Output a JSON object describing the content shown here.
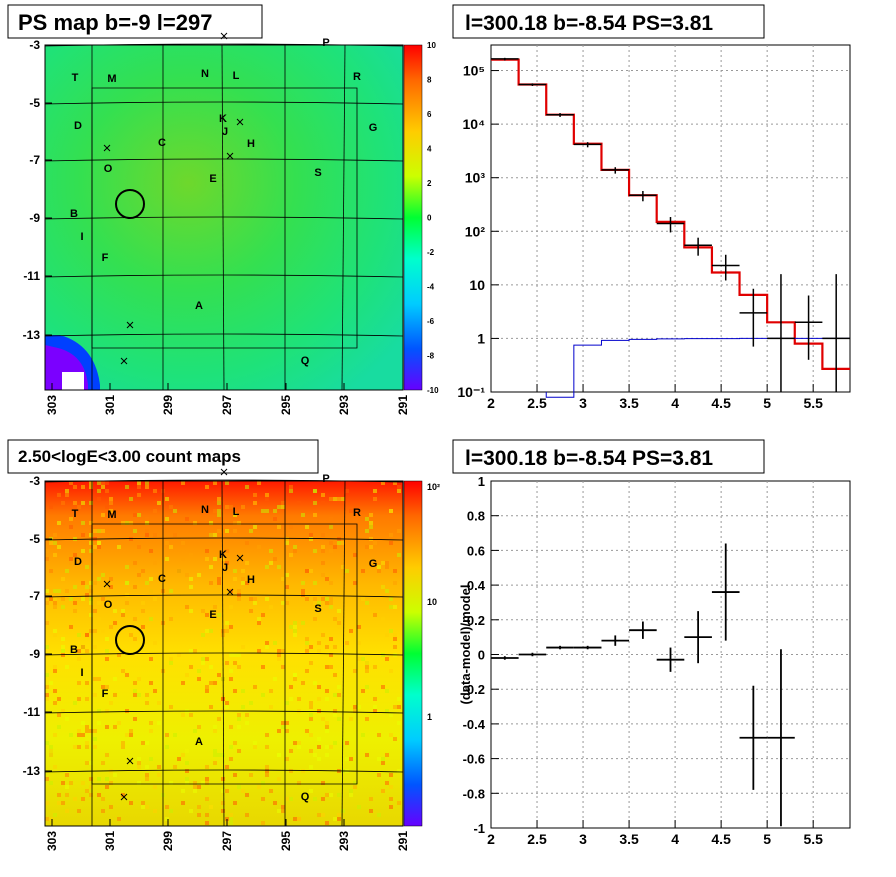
{
  "ps_map": {
    "title": "PS map b=-9 l=297",
    "y_ticks": [
      "-3",
      "-5",
      "-7",
      "-9",
      "-11",
      "-13"
    ],
    "x_ticks": [
      "303",
      "301",
      "299",
      "297",
      "295",
      "293",
      "291"
    ],
    "colorbar_ticks": [
      "10",
      "8",
      "6",
      "4",
      "2",
      "0",
      "-2",
      "-4",
      "-6",
      "-8",
      "-10"
    ],
    "labels": [
      "T",
      "M",
      "N",
      "L",
      "P",
      "R",
      "D",
      "K",
      "J",
      "H",
      "G",
      "C",
      "O",
      "E",
      "S",
      "B",
      "I",
      "F",
      "A",
      "Q"
    ]
  },
  "count_map": {
    "title": "2.50<logE<3.00 count maps",
    "y_ticks": [
      "-3",
      "-5",
      "-7",
      "-9",
      "-11",
      "-13"
    ],
    "x_ticks": [
      "303",
      "301",
      "299",
      "297",
      "295",
      "293",
      "291"
    ],
    "colorbar_ticks": [
      "10²",
      "10",
      "1"
    ],
    "labels": [
      "T",
      "M",
      "N",
      "L",
      "P",
      "R",
      "D",
      "K",
      "J",
      "H",
      "G",
      "C",
      "O",
      "E",
      "S",
      "B",
      "I",
      "F",
      "A",
      "Q"
    ]
  },
  "spectrum": {
    "title": "l=300.18 b=-8.54 PS=3.81",
    "y_ticks": [
      "10⁵",
      "10⁴",
      "10³",
      "10²",
      "10",
      "1",
      "10⁻¹"
    ],
    "x_ticks": [
      "2",
      "2.5",
      "3",
      "3.5",
      "4",
      "4.5",
      "5",
      "5.5"
    ]
  },
  "residual": {
    "title": "l=300.18 b=-8.54 PS=3.81",
    "ylabel": "(data-model)/model",
    "y_ticks": [
      "1",
      "0.8",
      "0.6",
      "0.4",
      "0.2",
      "0",
      "-0.2",
      "-0.4",
      "-0.6",
      "-0.8",
      "-1"
    ],
    "x_ticks": [
      "2",
      "2.5",
      "3",
      "3.5",
      "4",
      "4.5",
      "5",
      "5.5"
    ]
  },
  "chart_data": [
    {
      "type": "heatmap",
      "title": "PS map b=-9 l=297",
      "xlim": [
        303,
        291
      ],
      "ylim": [
        -14.5,
        -3
      ],
      "zlim": [
        -10,
        10
      ],
      "circle": {
        "l": 300.18,
        "b": -8.54
      }
    },
    {
      "type": "heatmap",
      "title": "2.50<logE<3.00 count maps",
      "xlim": [
        303,
        291
      ],
      "ylim": [
        -14.5,
        -3
      ],
      "z_scale": "log"
    },
    {
      "type": "line",
      "title": "l=300.18 b=-8.54 PS=3.81",
      "y_scale": "log",
      "xlim": [
        2,
        5.9
      ],
      "ylim": [
        0.1,
        300000
      ],
      "bin_edges": [
        2.0,
        2.3,
        2.6,
        2.9,
        3.2,
        3.5,
        3.8,
        4.1,
        4.4,
        4.7,
        5.0,
        5.3,
        5.6,
        5.9
      ],
      "series": [
        {
          "values": [
            160000,
            55000,
            15000,
            4300,
            1400,
            470,
            150,
            50,
            17,
            6.5,
            2.0,
            0.8,
            0.27
          ],
          "color": "#e00000"
        },
        {
          "values": [
            0,
            0,
            0.08,
            0.75,
            0.92,
            0.96,
            0.98,
            0.99,
            0.99,
            1.0,
            1.0,
            1.0,
            1.0
          ],
          "color": "#0000cc"
        },
        {
          "points": [
            [
              2.15,
              165000
            ],
            [
              2.45,
              55000
            ],
            [
              2.75,
              15000
            ],
            [
              3.05,
              4200
            ],
            [
              3.35,
              1400
            ],
            [
              3.65,
              470
            ],
            [
              3.95,
              140
            ],
            [
              4.25,
              55
            ],
            [
              4.55,
              23
            ],
            [
              4.85,
              3
            ],
            [
              5.15,
              1
            ],
            [
              5.45,
              2
            ],
            [
              5.75,
              1
            ]
          ],
          "color": "#000000"
        }
      ]
    },
    {
      "type": "scatter",
      "title": "l=300.18 b=-8.54 PS=3.81",
      "ylabel": "(data-model)/model",
      "xlim": [
        2,
        5.9
      ],
      "ylim": [
        -1,
        1
      ],
      "points": [
        {
          "x": 2.15,
          "y": -0.02,
          "yerr": 0.01
        },
        {
          "x": 2.45,
          "y": 0.0,
          "yerr": 0.01
        },
        {
          "x": 2.75,
          "y": 0.04,
          "yerr": 0.01
        },
        {
          "x": 3.05,
          "y": 0.04,
          "yerr": 0.01
        },
        {
          "x": 3.35,
          "y": 0.08,
          "yerr": 0.03
        },
        {
          "x": 3.65,
          "y": 0.14,
          "yerr": 0.05
        },
        {
          "x": 3.95,
          "y": -0.03,
          "yerr": 0.07
        },
        {
          "x": 4.25,
          "y": 0.1,
          "yerr": 0.15
        },
        {
          "x": 4.55,
          "y": 0.36,
          "yerr": 0.28
        },
        {
          "x": 4.85,
          "y": -0.48,
          "yerr": 0.3
        },
        {
          "x": 5.15,
          "y": -0.48,
          "yerr": 0.51
        }
      ]
    }
  ]
}
